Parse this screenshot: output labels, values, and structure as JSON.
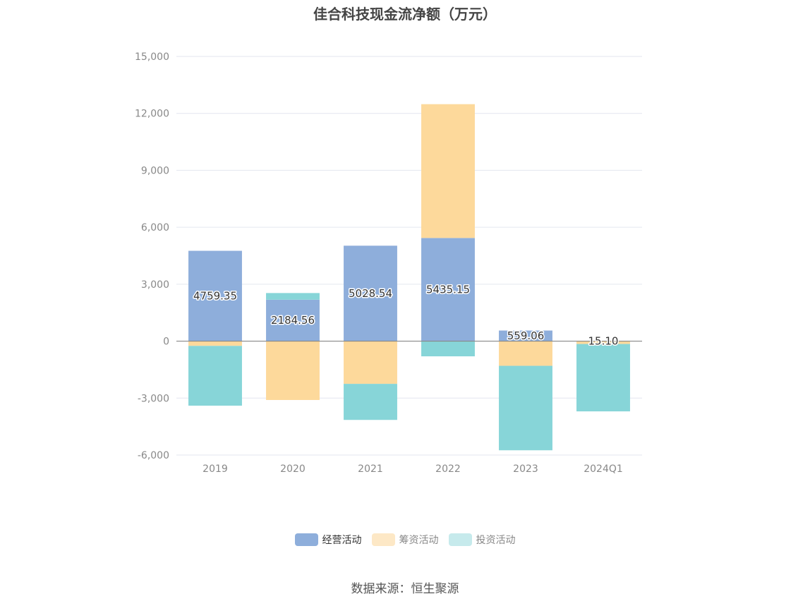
{
  "title": "佳合科技现金流净额（万元）",
  "source": "数据来源：恒生聚源",
  "colors": {
    "operating": "#8eaedb",
    "financing": "#fdd99b",
    "investing": "#87d5d8",
    "grid": "#e3e6ef",
    "zero_line": "#888888"
  },
  "legend": [
    {
      "label": "经营活动",
      "color": "#8eaedb",
      "text_color": "#333333"
    },
    {
      "label": "筹资活动",
      "color": "#fde8c6",
      "text_color": "#888888"
    },
    {
      "label": "投资活动",
      "color": "#c6eaec",
      "text_color": "#888888"
    }
  ],
  "chart_data": {
    "type": "bar",
    "stacked": true,
    "categories": [
      "2019",
      "2020",
      "2021",
      "2022",
      "2023",
      "2024Q1"
    ],
    "ylim": [
      -6000,
      15000
    ],
    "yticks": [
      -6000,
      -3000,
      0,
      3000,
      6000,
      9000,
      12000,
      15000
    ],
    "ytick_labels": [
      "-6,000",
      "-3,000",
      "0",
      "3,000",
      "6,000",
      "9,000",
      "12,000",
      "15,000"
    ],
    "grid": true,
    "legend_position": "bottom",
    "series": [
      {
        "name": "经营活动",
        "values": [
          4759.35,
          2184.56,
          5028.54,
          5435.15,
          559.06,
          15.1
        ],
        "labels": [
          "4759.35",
          "2184.56",
          "5028.54",
          "5435.15",
          "559.06",
          "15.10"
        ]
      },
      {
        "name": "筹资活动",
        "values": [
          -250,
          -3100,
          -2250,
          7050,
          -1300,
          -150
        ]
      },
      {
        "name": "投资活动",
        "values": [
          -3150,
          350,
          -1900,
          -800,
          -4450,
          -3550
        ]
      }
    ]
  }
}
